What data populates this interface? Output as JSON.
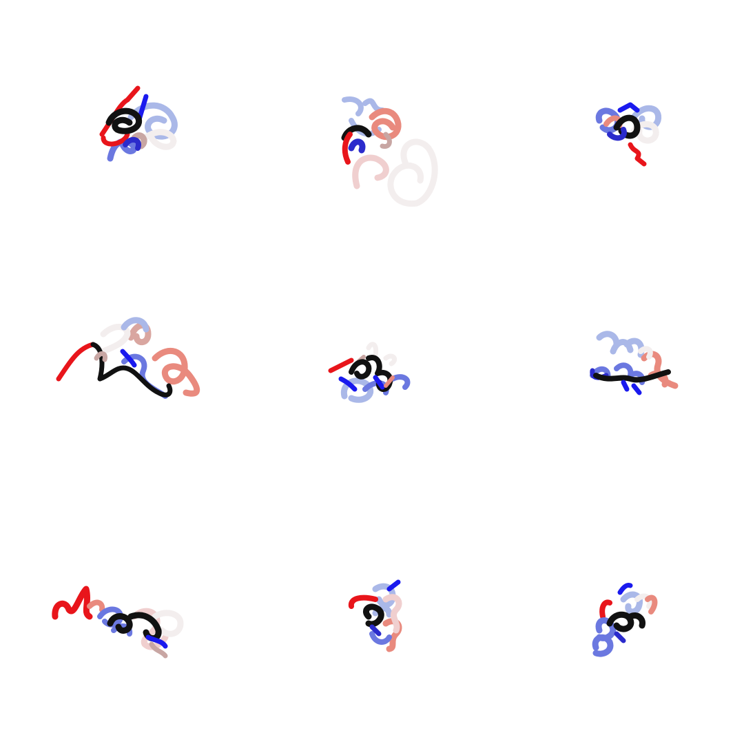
{
  "figure": {
    "layout": "3x3 grid",
    "description_colors": {
      "terminus_start": "#e8151b",
      "terminus_end": "#1a1aee",
      "core": "#111111",
      "mid_light": "#f3eeee",
      "mid_blue": "#aab8e8",
      "mid_salmon": "#e98a7e"
    },
    "panels": [
      {
        "id": "r1c1",
        "row": 1,
        "col": 1
      },
      {
        "id": "r1c2",
        "row": 1,
        "col": 2
      },
      {
        "id": "r1c3",
        "row": 1,
        "col": 3
      },
      {
        "id": "r2c1",
        "row": 2,
        "col": 1
      },
      {
        "id": "r2c2",
        "row": 2,
        "col": 2
      },
      {
        "id": "r2c3",
        "row": 2,
        "col": 3
      },
      {
        "id": "r3c1",
        "row": 3,
        "col": 1
      },
      {
        "id": "r3c2",
        "row": 3,
        "col": 2
      },
      {
        "id": "r3c3",
        "row": 3,
        "col": 3
      }
    ]
  }
}
